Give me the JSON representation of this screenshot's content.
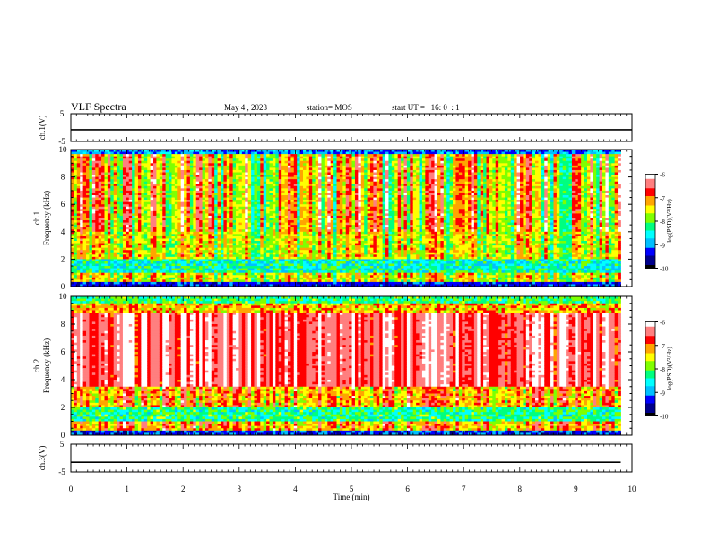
{
  "header": {
    "title": "VLF Spectra",
    "date": "May 4 , 2023",
    "station": "station= MOS",
    "start": "start UT =   16: 0  : 1"
  },
  "colors": {
    "axis": "#000000",
    "colormap": [
      "#000000",
      "#00008b",
      "#0000ff",
      "#00bfff",
      "#00ffff",
      "#00ff7f",
      "#7fff00",
      "#ffff00",
      "#ffa500",
      "#ff0000",
      "#ff7f7f",
      "#ffffff"
    ]
  },
  "chart_data": [
    {
      "type": "line",
      "id": "ch1-voltage",
      "ylabel": "ch.1(V)",
      "ylim": [
        -5,
        5
      ],
      "yticks": [
        "5",
        "-5"
      ],
      "x": [
        0,
        10
      ],
      "series": [
        {
          "values": [
            -0.8,
            -0.8
          ]
        }
      ]
    },
    {
      "type": "heatmap",
      "id": "ch1-spectrogram",
      "ylabel_1": "ch.1",
      "ylabel_2": "Frequency (kHz)",
      "ylim": [
        0,
        10
      ],
      "yticks": [
        "0",
        "2",
        "4",
        "6",
        "8",
        "10"
      ],
      "data_extent_min": 9.8,
      "colorbar": {
        "label": "log(PSD)(V²/Hz)",
        "range": [
          -10,
          -6
        ],
        "ticks": [
          "-6",
          "-7",
          "-8",
          "-9",
          "-10"
        ]
      }
    },
    {
      "type": "heatmap",
      "id": "ch2-spectrogram",
      "ylabel_1": "ch.2",
      "ylabel_2": "Frequency (kHz)",
      "ylim": [
        0,
        10
      ],
      "yticks": [
        "0",
        "2",
        "4",
        "6",
        "8",
        "10"
      ],
      "data_extent_min": 9.8,
      "colorbar": {
        "label": "log(PSD)(V²/Hz)",
        "range": [
          -10,
          -6
        ],
        "ticks": [
          "-6",
          "-7",
          "-8",
          "-9",
          "-10"
        ]
      }
    },
    {
      "type": "line",
      "id": "ch3-voltage",
      "ylabel": "ch.3(V)",
      "ylim": [
        -5,
        5
      ],
      "yticks": [
        "5",
        "-5"
      ],
      "xlabel": "Time (min)",
      "xlim": [
        0,
        10
      ],
      "xticks": [
        "0",
        "1",
        "2",
        "3",
        "4",
        "5",
        "6",
        "7",
        "8",
        "9",
        "10"
      ],
      "x": [
        0,
        9.8
      ],
      "series": [
        {
          "values": [
            -1.5,
            -1.5
          ]
        }
      ]
    }
  ]
}
